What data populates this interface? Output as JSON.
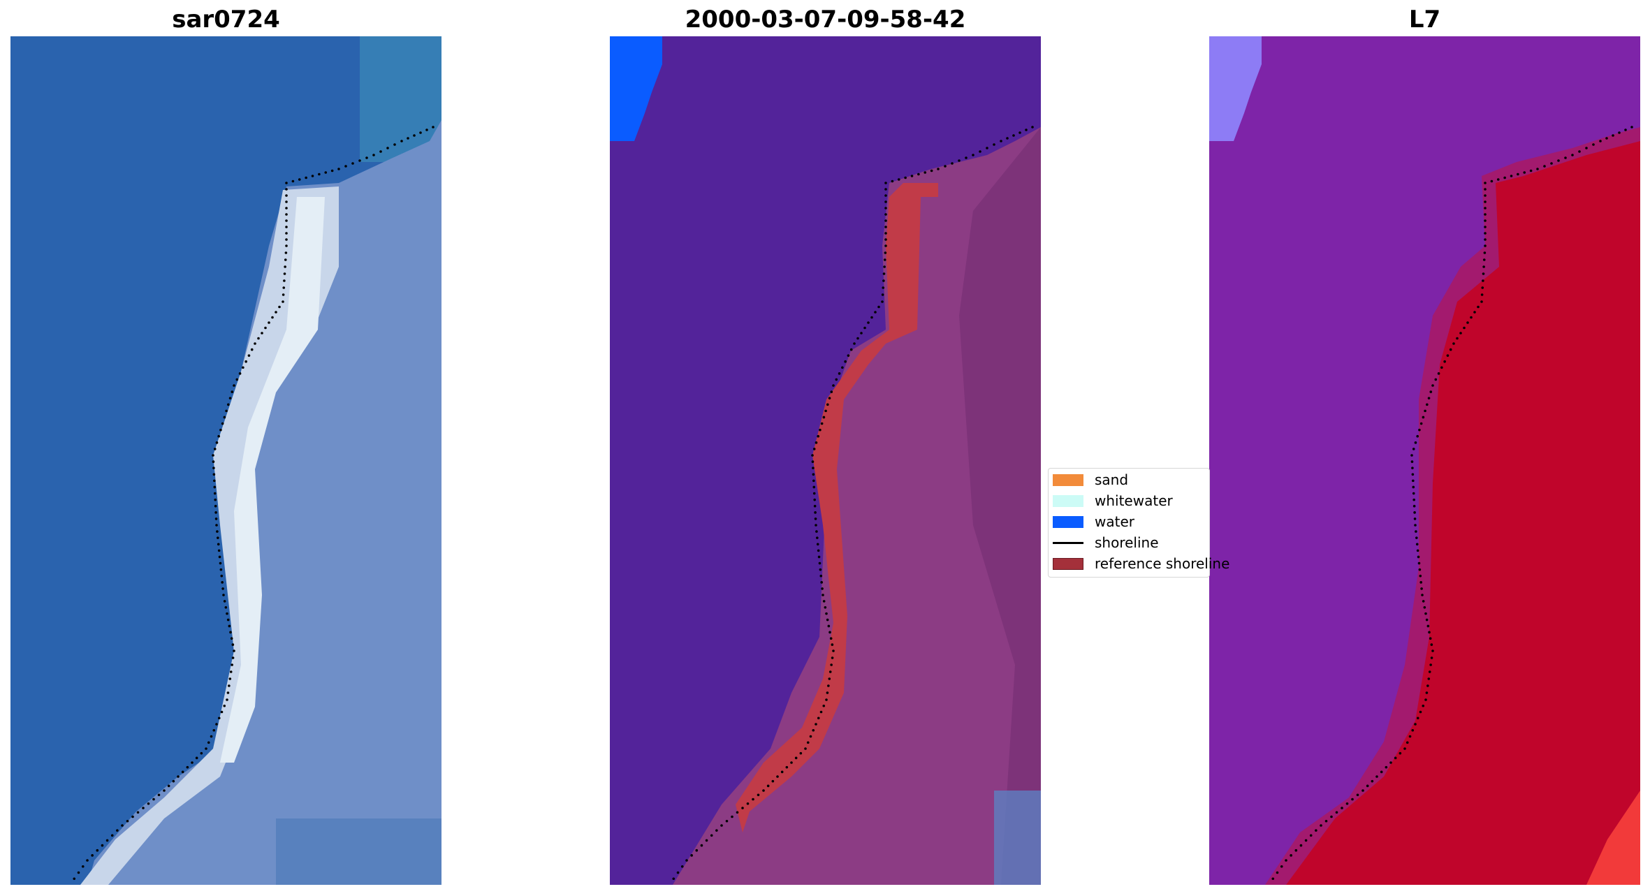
{
  "panels": [
    {
      "title": "sar0724"
    },
    {
      "title": "2000-03-07-09-58-42"
    },
    {
      "title": "L7"
    }
  ],
  "legend": {
    "items": [
      {
        "label": "sand",
        "color": "#f28b3a",
        "kind": "patch"
      },
      {
        "label": "whitewater",
        "color": "#ccfbf6",
        "kind": "patch"
      },
      {
        "label": "water",
        "color": "#0a5cff",
        "kind": "patch"
      },
      {
        "label": "shoreline",
        "color": "#000000",
        "kind": "line"
      },
      {
        "label": "reference shoreline",
        "color": "#a4303a",
        "kind": "patch"
      }
    ]
  },
  "colors": {
    "ocean_blue": "#2a63ae",
    "sand_white": "#e4eef6",
    "land_blue": "#6f8fc8",
    "classified_water": "#53239a",
    "classified_land": "#8c3c84",
    "reference_red": "#c13b48",
    "false_color_water": "#7e24a8",
    "false_color_land": "#c0052b",
    "shoreline_dots": "#000000"
  }
}
